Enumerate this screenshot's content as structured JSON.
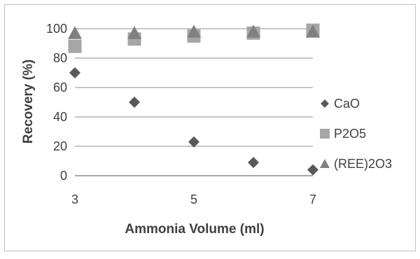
{
  "chart_data": {
    "type": "scatter",
    "title": "",
    "xlabel": "Ammonia Volume (ml)",
    "ylabel": "Recovery (%)",
    "xlim": [
      3,
      7
    ],
    "ylim": [
      0,
      100
    ],
    "x_ticks": [
      3,
      5,
      7
    ],
    "y_ticks": [
      0,
      20,
      40,
      60,
      80,
      100
    ],
    "x_tick_labels": [
      "3",
      "5",
      "7"
    ],
    "y_tick_labels": [
      "0",
      "20",
      "40",
      "60",
      "80",
      "100"
    ],
    "grid": "horizontal",
    "legend_position": "right",
    "series": [
      {
        "name": "CaO",
        "marker": "diamond",
        "color": "#595959",
        "points": [
          [
            3,
            70
          ],
          [
            4,
            50
          ],
          [
            5,
            23
          ],
          [
            6,
            9
          ],
          [
            7,
            4
          ]
        ]
      },
      {
        "name": "P2O5",
        "marker": "square",
        "color": "#a6a6a6",
        "points": [
          [
            3,
            88
          ],
          [
            4,
            93
          ],
          [
            5,
            95
          ],
          [
            6,
            97
          ],
          [
            7,
            99
          ]
        ]
      },
      {
        "name": "(REE)2O3",
        "marker": "triangle",
        "color": "#808080",
        "points": [
          [
            3,
            97
          ],
          [
            4,
            97
          ],
          [
            5,
            98
          ],
          [
            6,
            98
          ],
          [
            7,
            98
          ]
        ]
      }
    ]
  }
}
